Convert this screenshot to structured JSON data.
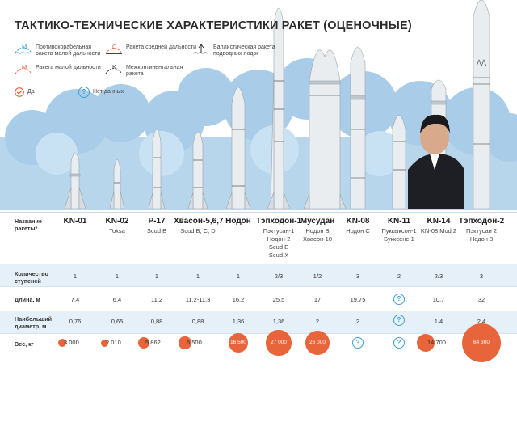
{
  "title": "ТАКТИКО-ТЕХНИЧЕСКИЕ ХАРАКТЕРИСТИКИ РАКЕТ (ОЦЕНОЧНЫЕ)",
  "legend": {
    "items": [
      {
        "mark": "М",
        "text": "Противокорабельная ракета малой дальности",
        "icon": "anti-ship-icon"
      },
      {
        "mark": "С",
        "text": "Ракета средней дальности",
        "icon": "medium-range-icon"
      },
      {
        "mark": "",
        "text": "Баллистическая ракета подводных лодок",
        "icon": "submarine-ballistic-icon"
      },
      {
        "mark": "М",
        "text": "Ракета малой дальности",
        "icon": "short-range-icon"
      },
      {
        "mark": "К",
        "text": "Межконтинентальная ракета",
        "icon": "intercontinental-icon"
      }
    ],
    "yes": "Да",
    "no_data": "Нет данных"
  },
  "row_labels": {
    "names": "Название ракеты*",
    "stages": "Количество ступеней",
    "length": "Длина, м",
    "diameter": "Наибольший диаметр, м",
    "weight": "Вес, кг"
  },
  "missiles": [
    {
      "name": "KN-01",
      "alt": "",
      "stages": "1",
      "length": "7,4",
      "diameter": "0,76",
      "weight": "3 000",
      "weight_value": 3000,
      "length_unknown": false,
      "diameter_unknown": false,
      "weight_unknown": false
    },
    {
      "name": "KN-02",
      "alt": "Toksa",
      "stages": "1",
      "length": "6,4",
      "diameter": "0,65",
      "weight": "2 010",
      "weight_value": 2010,
      "length_unknown": false,
      "diameter_unknown": false,
      "weight_unknown": false
    },
    {
      "name": "Р-17",
      "alt": "Scud B",
      "stages": "1",
      "length": "11,2",
      "diameter": "0,88",
      "weight": "5 862",
      "weight_value": 5862,
      "length_unknown": false,
      "diameter_unknown": false,
      "weight_unknown": false
    },
    {
      "name": "Хвасон-5,6,7",
      "alt": "Scud B, C, D",
      "stages": "1",
      "length": "11,2-11,3",
      "diameter": "0,88",
      "weight": "6 500",
      "weight_value": 6500,
      "length_unknown": false,
      "diameter_unknown": false,
      "weight_unknown": false
    },
    {
      "name": "Нодон",
      "alt": "",
      "stages": "1",
      "length": "16,2",
      "diameter": "1,36",
      "weight": "16 500",
      "weight_value": 16500,
      "length_unknown": false,
      "diameter_unknown": false,
      "weight_unknown": false
    },
    {
      "name": "Тэпходон-1",
      "alt": "Пэктусан-1\nНодон-2\nScud E\nScud X",
      "stages": "2/3",
      "length": "25,5",
      "diameter": "1,36",
      "weight": "27 000",
      "weight_value": 27000,
      "length_unknown": false,
      "diameter_unknown": false,
      "weight_unknown": false
    },
    {
      "name": "Мусудан",
      "alt": "Нодон В\nХвасон-10",
      "stages": "1/2",
      "length": "17",
      "diameter": "2",
      "weight": "26 000",
      "weight_value": 26000,
      "length_unknown": false,
      "diameter_unknown": false,
      "weight_unknown": false
    },
    {
      "name": "KN-08",
      "alt": "Нодон С",
      "stages": "3",
      "length": "19,75",
      "diameter": "2",
      "weight": "",
      "weight_value": 0,
      "length_unknown": false,
      "diameter_unknown": false,
      "weight_unknown": true
    },
    {
      "name": "KN-11",
      "alt": "Пуккыксон-1\nБукксенс-1",
      "stages": "2",
      "length": "",
      "diameter": "",
      "weight": "",
      "weight_value": 0,
      "length_unknown": true,
      "diameter_unknown": true,
      "weight_unknown": true
    },
    {
      "name": "KN-14",
      "alt": "KN-08 Mod 2",
      "stages": "2/3",
      "length": "10,7",
      "diameter": "1,4",
      "weight": "14 700",
      "weight_value": 14700,
      "length_unknown": false,
      "diameter_unknown": false,
      "weight_unknown": false
    },
    {
      "name": "Тэпходон-2",
      "alt": "Пэктусан 2\nНодон 3",
      "stages": "3",
      "length": "32",
      "diameter": "2,4",
      "weight": "64 300",
      "weight_value": 64300,
      "length_unknown": false,
      "diameter_unknown": false,
      "weight_unknown": false
    }
  ],
  "colors": {
    "sky": "#bcd9ee",
    "accent": "#e8643a",
    "info": "#3fa0d6",
    "band": "#e6f0f8"
  }
}
